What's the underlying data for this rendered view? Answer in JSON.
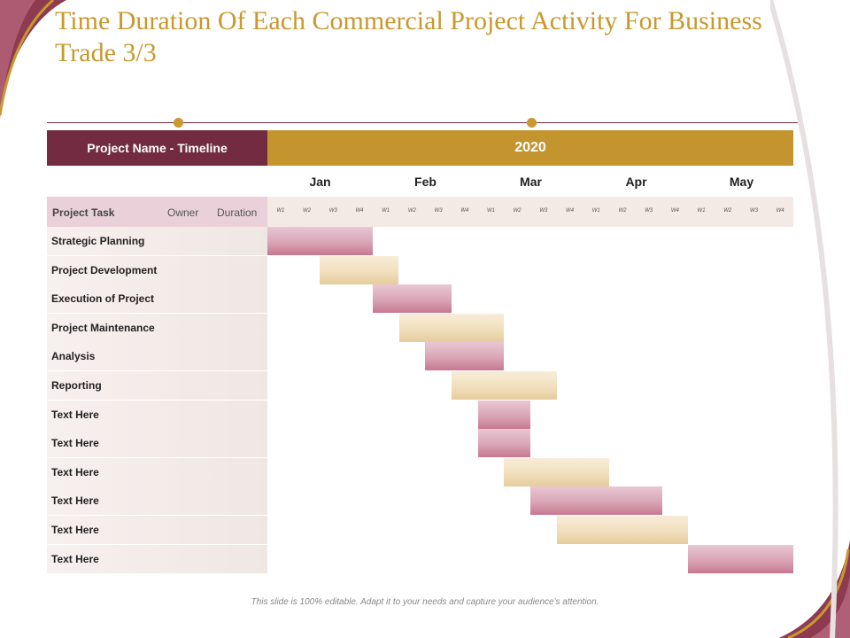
{
  "slide": {
    "title": "Time Duration Of Each Commercial Project Activity For Business Trade 3/3",
    "footer_note": "This slide is 100% editable. Adapt it to your needs and capture your audience's attention."
  },
  "header": {
    "left_label": "Project Name - Timeline",
    "year": "2020"
  },
  "months": [
    "Jan",
    "Feb",
    "Mar",
    "Apr",
    "May"
  ],
  "week_labels": [
    "W1",
    "W2",
    "W3",
    "W4"
  ],
  "columns": {
    "task": "Project Task",
    "owner": "Owner",
    "duration": "Duration"
  },
  "tasks": [
    {
      "name": "Strategic Planning",
      "start_week": 0,
      "weeks": 4,
      "color": "pink"
    },
    {
      "name": "Project Development",
      "start_week": 2,
      "weeks": 3,
      "color": "beige"
    },
    {
      "name": "Execution of Project",
      "start_week": 4,
      "weeks": 3,
      "color": "pink"
    },
    {
      "name": "Project Maintenance",
      "start_week": 5,
      "weeks": 4,
      "color": "beige"
    },
    {
      "name": "Analysis",
      "start_week": 6,
      "weeks": 3,
      "color": "pink"
    },
    {
      "name": "Reporting",
      "start_week": 7,
      "weeks": 4,
      "color": "beige"
    },
    {
      "name": "Text Here",
      "start_week": 8,
      "weeks": 2,
      "color": "pink"
    },
    {
      "name": "Text Here",
      "start_week": 8,
      "weeks": 2,
      "color": "pink"
    },
    {
      "name": "Text Here",
      "start_week": 9,
      "weeks": 4,
      "color": "beige"
    },
    {
      "name": "Text Here",
      "start_week": 10,
      "weeks": 5,
      "color": "pink"
    },
    {
      "name": "Text Here",
      "start_week": 11,
      "weeks": 5,
      "color": "beige"
    },
    {
      "name": "Text Here",
      "start_week": 16,
      "weeks": 4,
      "color": "pink"
    }
  ],
  "colors": {
    "title": "#c9982e",
    "header_left": "#722b40",
    "header_right": "#c4952e",
    "bar_pink": "#d9a5b6",
    "bar_beige": "#f1dfbd"
  }
}
